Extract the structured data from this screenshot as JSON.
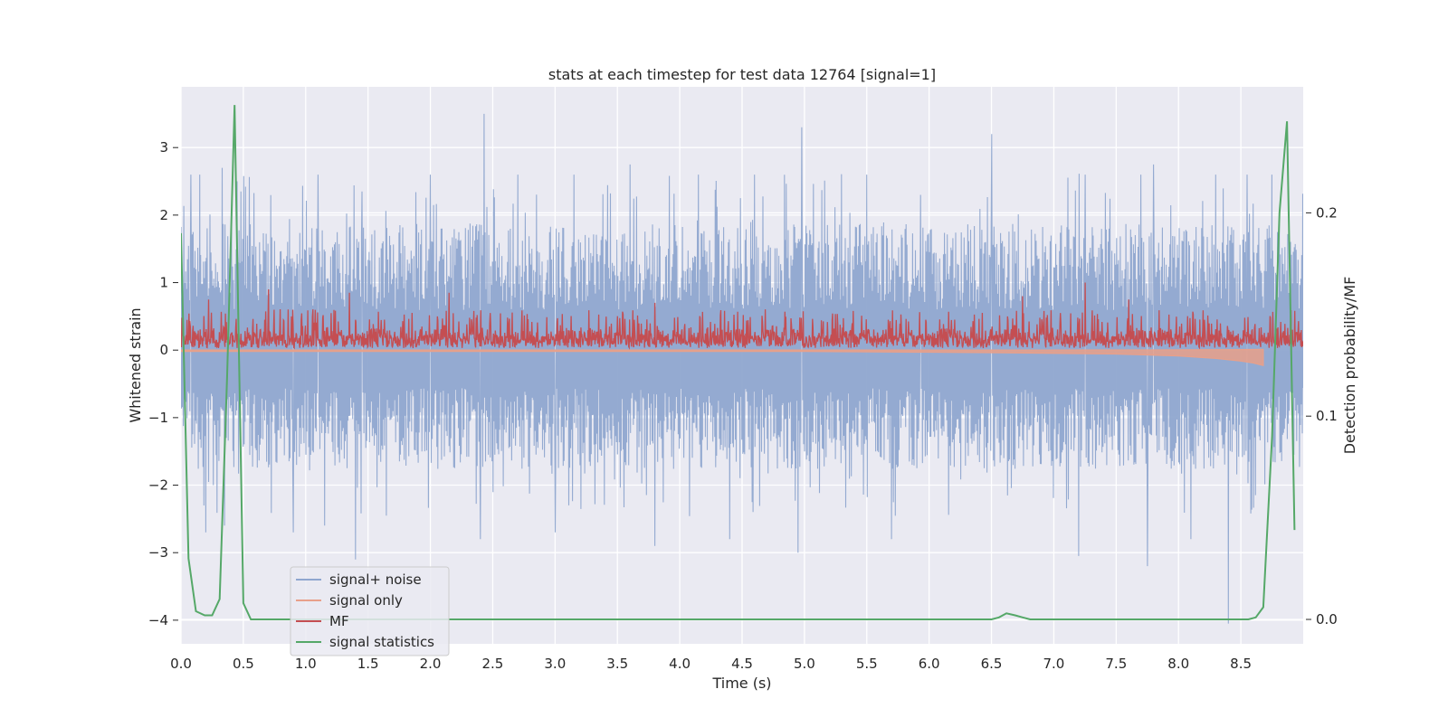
{
  "chart_data": {
    "type": "line",
    "title": "stats at each timestep for test data 12764 [signal=1]",
    "xlabel": "Time (s)",
    "ylabel": "Whitened strain",
    "y2label": "Detection probability/MF",
    "xlim": [
      0.0,
      9.0
    ],
    "ylim": [
      -4.35,
      3.9
    ],
    "y2lim": [
      -0.012,
      0.262
    ],
    "xticks": [
      "0.0",
      "0.5",
      "1.0",
      "1.5",
      "2.0",
      "2.5",
      "3.0",
      "3.5",
      "4.0",
      "4.5",
      "5.0",
      "5.5",
      "6.0",
      "6.5",
      "7.0",
      "7.5",
      "8.0",
      "8.5"
    ],
    "yticks": [
      "3",
      "2",
      "1",
      "0",
      "−1",
      "−2",
      "−3",
      "−4"
    ],
    "y2ticks": [
      "0.2",
      "0.1",
      "0.0"
    ],
    "grid": true,
    "legend_position": "lower-left",
    "series": [
      {
        "name": "signal+ noise",
        "color": "#8fa6cf",
        "axis": "left",
        "style": "dense noise",
        "x_range": [
          0.0,
          9.0
        ],
        "typical_amplitude": [
          -1.6,
          1.7
        ],
        "peaks": [
          {
            "x": 0.08,
            "y": 2.6
          },
          {
            "x": 0.15,
            "y": 2.6
          },
          {
            "x": 0.33,
            "y": 2.7
          },
          {
            "x": 0.45,
            "y": 2.5
          },
          {
            "x": 0.48,
            "y": 2.35
          },
          {
            "x": 1.1,
            "y": 2.6
          },
          {
            "x": 1.45,
            "y": 2.35
          },
          {
            "x": 2.0,
            "y": 2.6
          },
          {
            "x": 2.43,
            "y": 3.5
          },
          {
            "x": 2.7,
            "y": 2.6
          },
          {
            "x": 3.15,
            "y": 2.6
          },
          {
            "x": 3.6,
            "y": 2.75
          },
          {
            "x": 4.15,
            "y": 2.6
          },
          {
            "x": 4.6,
            "y": 2.6
          },
          {
            "x": 4.98,
            "y": 3.3
          },
          {
            "x": 5.5,
            "y": 2.6
          },
          {
            "x": 5.93,
            "y": 2.3
          },
          {
            "x": 6.5,
            "y": 3.2
          },
          {
            "x": 7.25,
            "y": 2.6
          },
          {
            "x": 7.7,
            "y": 2.6
          },
          {
            "x": 7.8,
            "y": 2.75
          },
          {
            "x": 8.3,
            "y": 2.6
          },
          {
            "x": 8.55,
            "y": 2.6
          },
          {
            "x": 8.75,
            "y": 2.6
          }
        ],
        "troughs": [
          {
            "x": 0.2,
            "y": -2.7
          },
          {
            "x": 0.35,
            "y": -2.6
          },
          {
            "x": 0.9,
            "y": -2.7
          },
          {
            "x": 1.15,
            "y": -2.6
          },
          {
            "x": 1.4,
            "y": -3.1
          },
          {
            "x": 2.4,
            "y": -2.8
          },
          {
            "x": 3.0,
            "y": -2.7
          },
          {
            "x": 3.8,
            "y": -2.9
          },
          {
            "x": 4.4,
            "y": -2.8
          },
          {
            "x": 4.95,
            "y": -3.0
          },
          {
            "x": 5.7,
            "y": -2.8
          },
          {
            "x": 7.2,
            "y": -3.05
          },
          {
            "x": 7.75,
            "y": -3.2
          },
          {
            "x": 8.1,
            "y": -2.8
          },
          {
            "x": 8.4,
            "y": -4.05
          }
        ]
      },
      {
        "name": "signal only",
        "color": "#e8a08a",
        "axis": "left",
        "style": "chirp",
        "x": [
          0.0,
          5.0,
          6.5,
          7.5,
          8.0,
          8.3,
          8.5,
          8.6,
          8.68
        ],
        "envelope": [
          0.02,
          0.02,
          0.04,
          0.06,
          0.09,
          0.13,
          0.17,
          0.2,
          0.24
        ]
      },
      {
        "name": "MF",
        "color": "#c44e52",
        "axis": "left",
        "style": "noise band",
        "x_range": [
          0.0,
          9.0
        ],
        "band": [
          0.0,
          0.55
        ],
        "peaks": [
          {
            "x": 0.22,
            "y": 0.75
          },
          {
            "x": 0.7,
            "y": 0.9
          },
          {
            "x": 1.35,
            "y": 0.85
          },
          {
            "x": 2.15,
            "y": 0.85
          },
          {
            "x": 3.8,
            "y": 0.7
          },
          {
            "x": 6.75,
            "y": 0.8
          },
          {
            "x": 7.25,
            "y": 1.0
          },
          {
            "x": 7.6,
            "y": 0.75
          }
        ]
      },
      {
        "name": "signal statistics",
        "color": "#55a868",
        "axis": "right",
        "x": [
          0.0,
          0.06,
          0.12,
          0.19,
          0.25,
          0.31,
          0.37,
          0.43,
          0.5,
          0.56,
          0.62,
          6.44,
          6.5,
          6.56,
          6.62,
          6.69,
          6.75,
          6.81,
          6.87,
          8.56,
          8.62,
          8.68,
          8.75,
          8.81,
          8.87,
          8.93
        ],
        "y": [
          0.19,
          0.03,
          0.004,
          0.002,
          0.002,
          0.01,
          0.12,
          0.253,
          0.008,
          0.0,
          0.0,
          0.0,
          0.0,
          0.001,
          0.003,
          0.002,
          0.001,
          0.0,
          0.0,
          0.0,
          0.001,
          0.006,
          0.09,
          0.2,
          0.245,
          0.044
        ]
      }
    ]
  }
}
